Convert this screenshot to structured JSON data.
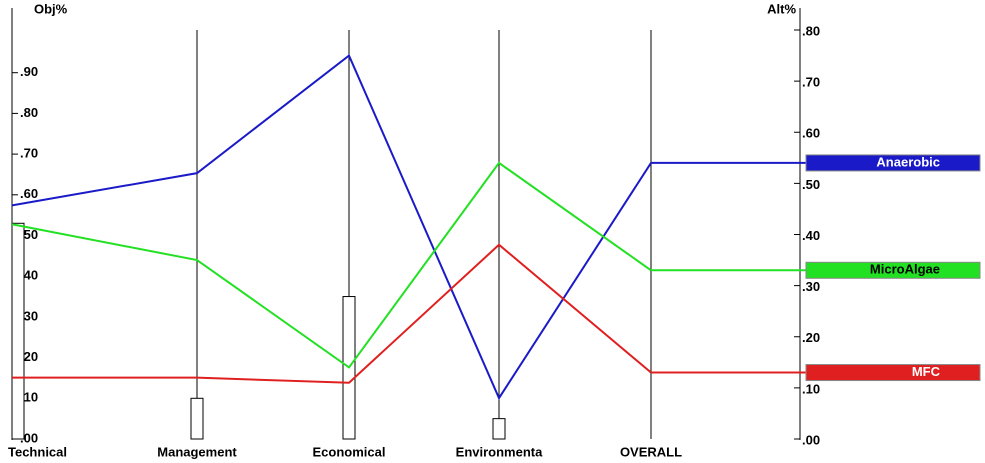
{
  "chart_data": {
    "type": "line",
    "left_axis_label": "Obj%",
    "right_axis_label": "Alt%",
    "categories": [
      "Technical",
      "Management",
      "Economical",
      "Environmenta",
      "OVERALL"
    ],
    "bar_values": [
      0.53,
      0.1,
      0.35,
      0.05
    ],
    "bar_color": "#ffffff",
    "ylim": [
      0,
      1.0
    ],
    "yticks": [
      {
        "value": 0,
        "label": ".00"
      },
      {
        "value": 0.1,
        "label": ".10"
      },
      {
        "value": 0.2,
        "label": ".20"
      },
      {
        "value": 0.3,
        "label": ".30"
      },
      {
        "value": 0.4,
        "label": ".40"
      },
      {
        "value": 0.5,
        "label": ".50"
      },
      {
        "value": 0.6,
        "label": ".60"
      },
      {
        "value": 0.7,
        "label": ".70"
      },
      {
        "value": 0.8,
        "label": ".80"
      },
      {
        "value": 0.9,
        "label": ".90"
      }
    ],
    "y2lim": [
      0,
      0.8
    ],
    "y2ticks": [
      {
        "value": 0,
        "label": ".00"
      },
      {
        "value": 0.1,
        "label": ".10"
      },
      {
        "value": 0.2,
        "label": ".20"
      },
      {
        "value": 0.3,
        "label": ".30"
      },
      {
        "value": 0.4,
        "label": ".40"
      },
      {
        "value": 0.5,
        "label": ".50"
      },
      {
        "value": 0.6,
        "label": ".60"
      },
      {
        "value": 0.7,
        "label": ".70"
      },
      {
        "value": 0.8,
        "label": ".80"
      }
    ],
    "series": [
      {
        "name": "Anaerobic",
        "color": "#1a1ac8",
        "axis": "y2",
        "values": [
          0.457,
          0.52,
          0.75,
          0.08,
          0.54
        ]
      },
      {
        "name": "MicroAlgae",
        "color": "#22e022",
        "axis": "y2",
        "values": [
          0.42,
          0.35,
          0.14,
          0.54,
          0.33
        ]
      },
      {
        "name": "MFC",
        "color": "#e02020",
        "axis": "y2",
        "values": [
          0.12,
          0.12,
          0.11,
          0.38,
          0.13
        ]
      }
    ]
  }
}
